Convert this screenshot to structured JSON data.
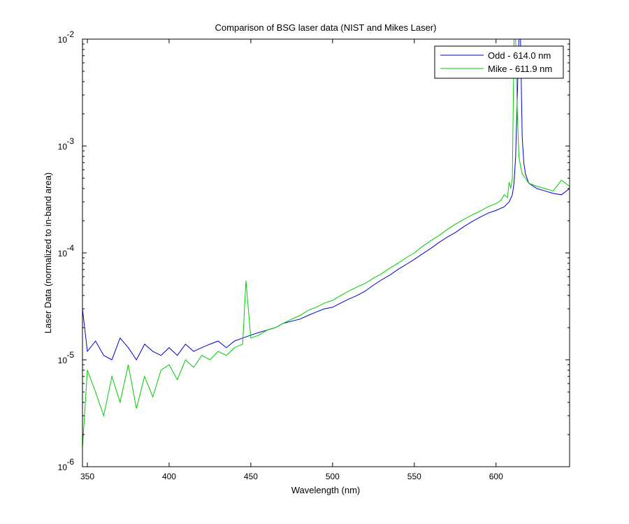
{
  "chart_data": {
    "type": "line",
    "title": "Comparison of BSG laser data (NIST and Mikes Laser)",
    "xlabel": "Wavelength (nm)",
    "ylabel": "Laser Data (normalized to in-band area)",
    "xlim": [
      347,
      645
    ],
    "ylim": [
      1e-06,
      0.01
    ],
    "yscale": "log",
    "xticks": [
      350,
      400,
      450,
      500,
      550,
      600
    ],
    "xtick_labels": [
      "350",
      "400",
      "450",
      "500",
      "550",
      "600"
    ],
    "yticks": [
      1e-06,
      1e-05,
      0.0001,
      0.001,
      0.01
    ],
    "ytick_labels": [
      {
        "base": "10",
        "exp": "-6"
      },
      {
        "base": "10",
        "exp": "-5"
      },
      {
        "base": "10",
        "exp": "-4"
      },
      {
        "base": "10",
        "exp": "-3"
      },
      {
        "base": "10",
        "exp": "-2"
      }
    ],
    "grid": false,
    "legend_position": "top-right",
    "series": [
      {
        "name": "Odd - 614.0 nm",
        "color": "#0000cc",
        "x": [
          347,
          350,
          355,
          360,
          365,
          370,
          375,
          380,
          385,
          390,
          395,
          400,
          405,
          410,
          415,
          420,
          425,
          430,
          435,
          440,
          445,
          450,
          455,
          460,
          465,
          470,
          475,
          480,
          485,
          490,
          495,
          500,
          505,
          510,
          515,
          520,
          525,
          530,
          535,
          540,
          545,
          550,
          555,
          560,
          565,
          570,
          575,
          580,
          585,
          590,
          595,
          600,
          605,
          608,
          610,
          611,
          612,
          613,
          614,
          615,
          616,
          617,
          618,
          620,
          625,
          630,
          635,
          640,
          645
        ],
        "y": [
          3e-05,
          1.2e-05,
          1.5e-05,
          1.1e-05,
          1e-05,
          1.6e-05,
          1.3e-05,
          1e-05,
          1.4e-05,
          1.2e-05,
          1.1e-05,
          1.3e-05,
          1.1e-05,
          1.4e-05,
          1.2e-05,
          1.3e-05,
          1.4e-05,
          1.5e-05,
          1.3e-05,
          1.5e-05,
          1.6e-05,
          1.7e-05,
          1.8e-05,
          1.9e-05,
          2e-05,
          2.2e-05,
          2.3e-05,
          2.4e-05,
          2.6e-05,
          2.8e-05,
          3e-05,
          3.1e-05,
          3.4e-05,
          3.7e-05,
          4e-05,
          4.4e-05,
          5e-05,
          5.6e-05,
          6.2e-05,
          7e-05,
          7.8e-05,
          8.7e-05,
          9.8e-05,
          0.00011,
          0.000125,
          0.00014,
          0.000155,
          0.000175,
          0.000195,
          0.000215,
          0.000235,
          0.00025,
          0.00027,
          0.0003,
          0.00035,
          0.00045,
          0.0008,
          0.003,
          0.01,
          0.01,
          0.0012,
          0.0007,
          0.00055,
          0.00045,
          0.0004,
          0.00038,
          0.00036,
          0.00035,
          0.0004
        ]
      },
      {
        "name": "Mike - 611.9 nm",
        "color": "#00cc00",
        "x": [
          347,
          350,
          355,
          360,
          365,
          370,
          375,
          380,
          385,
          390,
          395,
          400,
          405,
          410,
          415,
          420,
          425,
          430,
          435,
          440,
          445,
          447,
          450,
          455,
          460,
          465,
          470,
          475,
          480,
          485,
          490,
          495,
          500,
          505,
          510,
          515,
          520,
          525,
          530,
          535,
          540,
          545,
          550,
          555,
          560,
          565,
          570,
          575,
          580,
          585,
          590,
          595,
          600,
          603,
          605,
          607,
          608,
          609,
          610,
          611,
          612,
          613,
          614,
          615,
          616,
          618,
          620,
          625,
          630,
          635,
          640,
          645
        ],
        "y": [
          1.5e-06,
          8e-06,
          5e-06,
          3e-06,
          7e-06,
          4e-06,
          9e-06,
          3.5e-06,
          7e-06,
          4.5e-06,
          8e-06,
          9e-06,
          6.5e-06,
          1e-05,
          8.5e-06,
          1.1e-05,
          1e-05,
          1.2e-05,
          1.1e-05,
          1.3e-05,
          1.4e-05,
          5.5e-05,
          1.6e-05,
          1.7e-05,
          1.9e-05,
          2e-05,
          2.2e-05,
          2.4e-05,
          2.6e-05,
          2.9e-05,
          3.1e-05,
          3.4e-05,
          3.6e-05,
          4e-05,
          4.4e-05,
          4.8e-05,
          5.2e-05,
          5.8e-05,
          6.4e-05,
          7.2e-05,
          8e-05,
          9e-05,
          0.0001,
          0.000115,
          0.00013,
          0.000145,
          0.000165,
          0.000185,
          0.000205,
          0.000225,
          0.000245,
          0.00027,
          0.00029,
          0.00031,
          0.00035,
          0.00033,
          0.00046,
          0.0004,
          0.0005,
          0.01,
          0.01,
          0.002,
          0.0008,
          0.00065,
          0.00055,
          0.0005,
          0.00045,
          0.00042,
          0.0004,
          0.00038,
          0.00048,
          0.00042
        ]
      }
    ]
  }
}
